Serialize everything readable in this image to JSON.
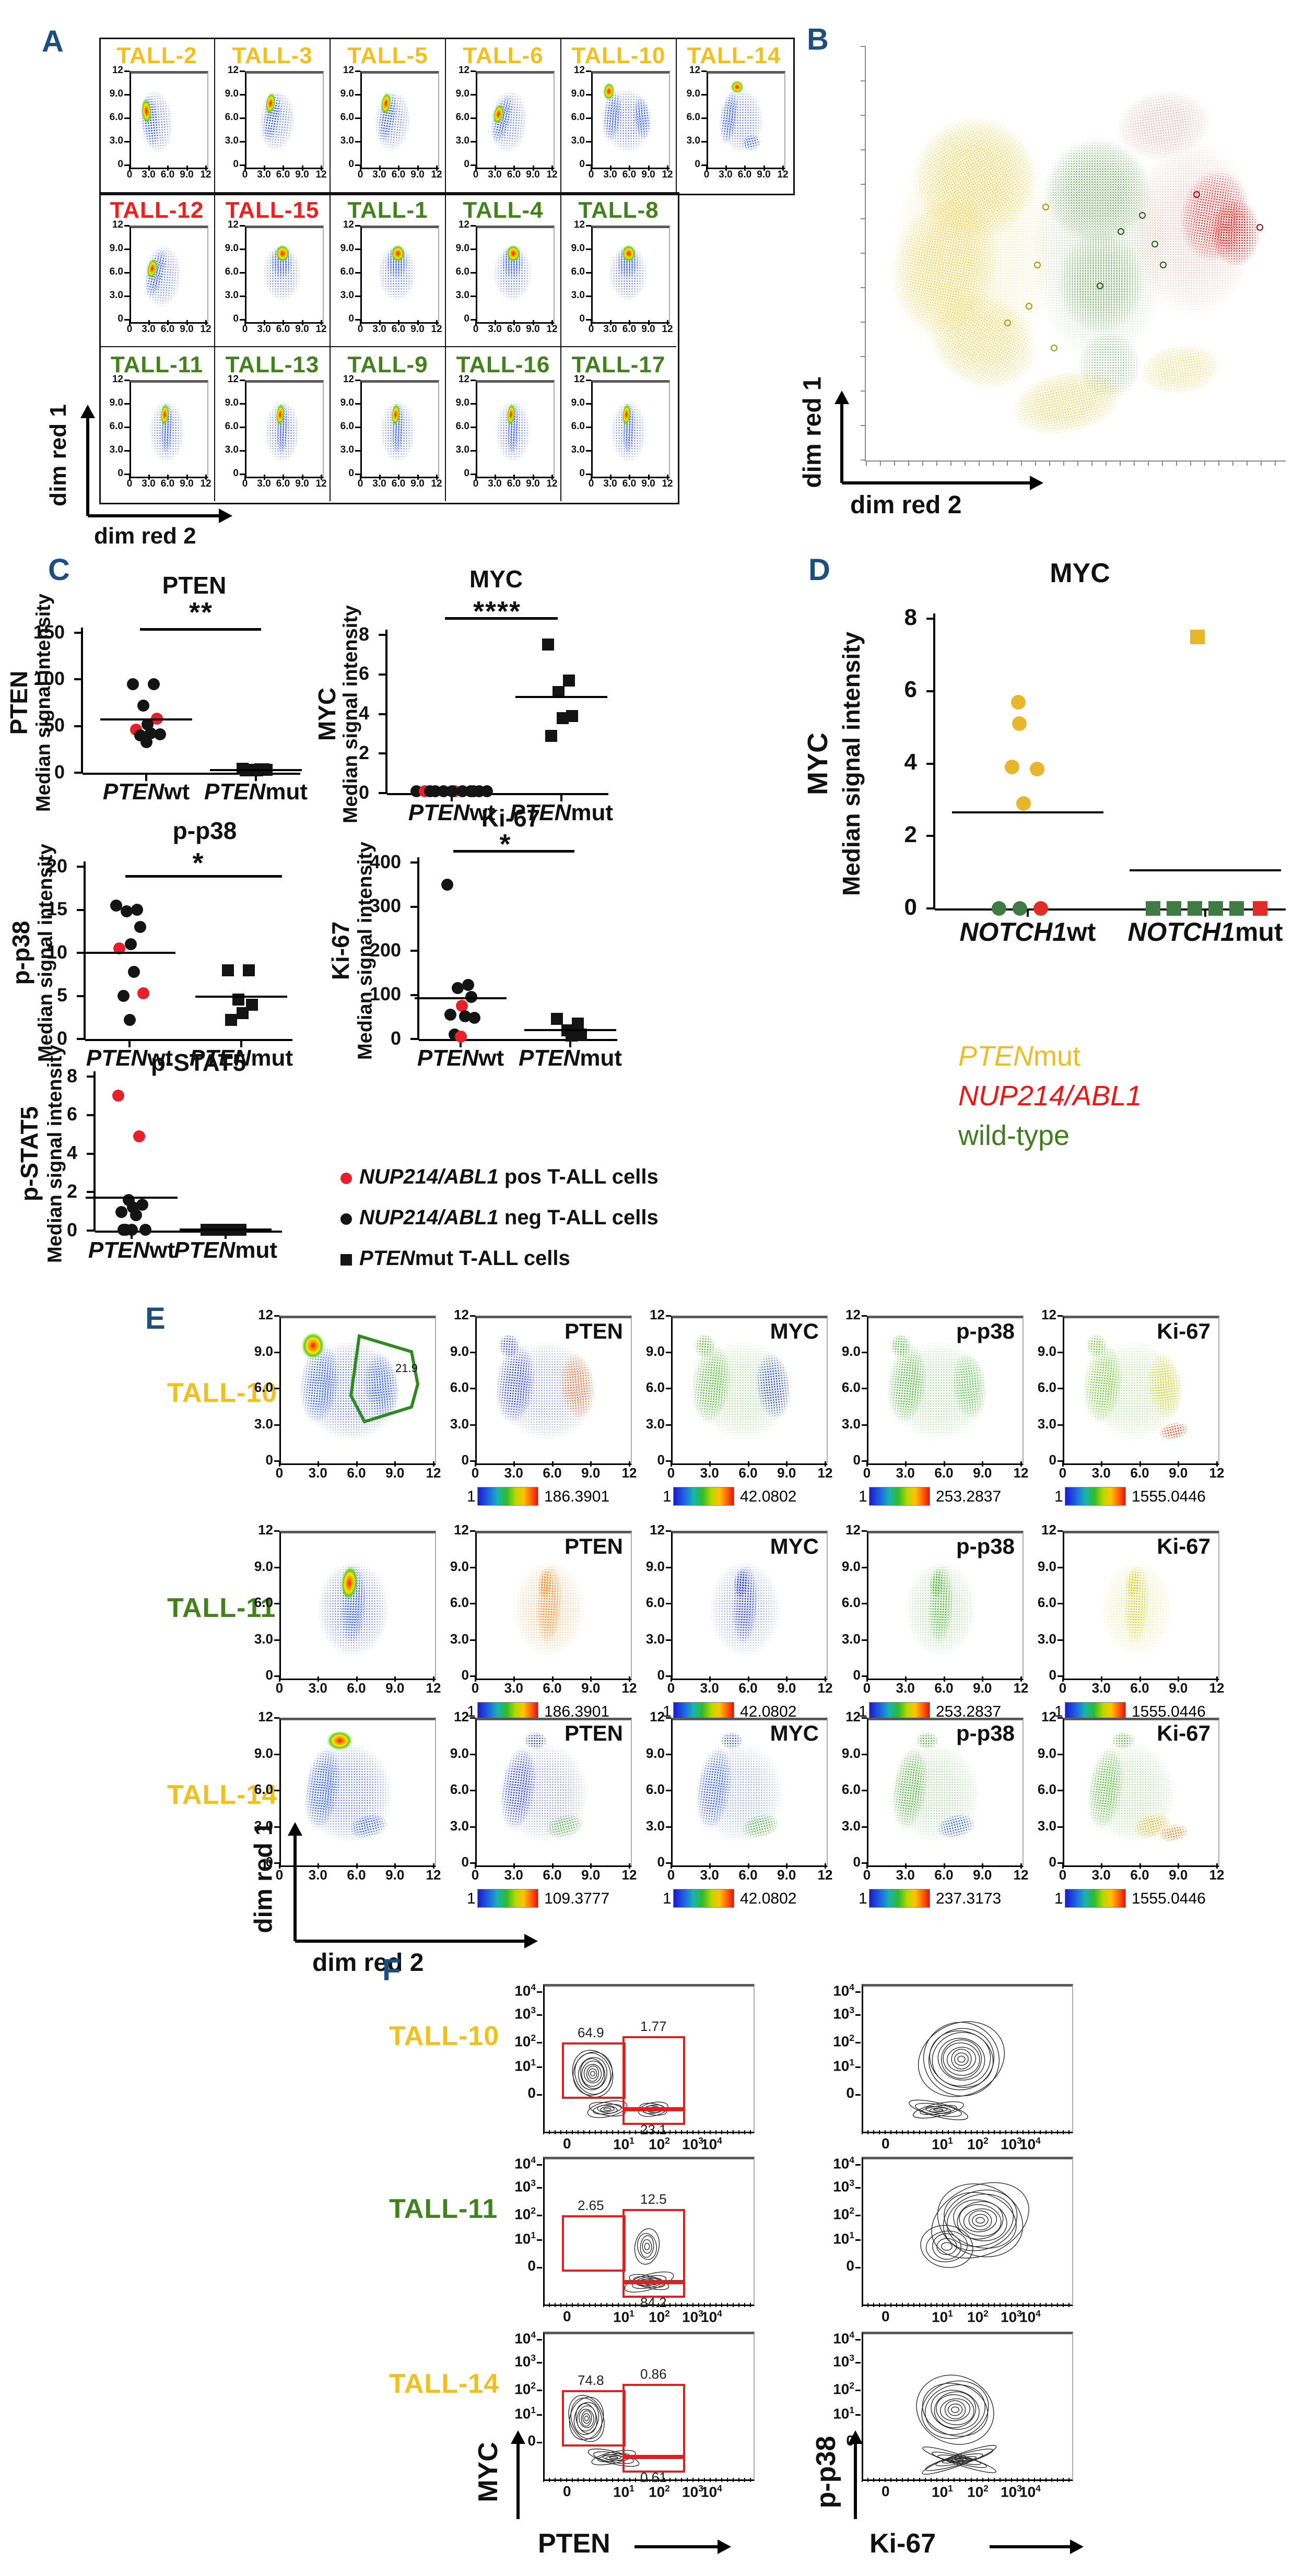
{
  "colors": {
    "panel_letter": "#1c4e7e",
    "tall_yellow": "#f1c01f",
    "tall_red": "#f21d1c",
    "tall_green": "#41821c",
    "point_black": "#141414",
    "point_red": "#e8202a",
    "d_yellow": "#e9b52c",
    "d_green": "#3e7c43",
    "d_red": "#e22d25",
    "gate_red": "#e02020",
    "gate_green": "#2f8a1f"
  },
  "panels": {
    "A": {
      "letter": "A",
      "x_axis": "dim red 2",
      "y_axis": "dim red 1",
      "axis_ticks": [
        "0",
        "3.0",
        "6.0",
        "9.0",
        "12"
      ],
      "rows": [
        {
          "cells": [
            {
              "label": "TALL-2",
              "group": "yellow"
            },
            {
              "label": "TALL-3",
              "group": "yellow"
            },
            {
              "label": "TALL-5",
              "group": "yellow"
            },
            {
              "label": "TALL-6",
              "group": "yellow"
            },
            {
              "label": "TALL-10",
              "group": "yellow"
            },
            {
              "label": "TALL-14",
              "group": "yellow"
            }
          ]
        },
        {
          "cells": [
            {
              "label": "TALL-12",
              "group": "red"
            },
            {
              "label": "TALL-15",
              "group": "red"
            },
            {
              "label": "TALL-1",
              "group": "green"
            },
            {
              "label": "TALL-4",
              "group": "green"
            },
            {
              "label": "TALL-8",
              "group": "green"
            }
          ]
        },
        {
          "cells": [
            {
              "label": "TALL-11",
              "group": "green"
            },
            {
              "label": "TALL-13",
              "group": "green"
            },
            {
              "label": "TALL-9",
              "group": "green"
            },
            {
              "label": "TALL-16",
              "group": "green"
            },
            {
              "label": "TALL-17",
              "group": "green"
            }
          ]
        }
      ]
    },
    "B": {
      "letter": "B",
      "x_axis": "dim red 2",
      "y_axis": "dim red 1"
    },
    "C": {
      "letter": "C",
      "legend": [
        {
          "marker": "circle",
          "color": "#e8202a",
          "italic": "NUP214/ABL1",
          "rest": " pos T-ALL cells"
        },
        {
          "marker": "circle",
          "color": "#141414",
          "italic": "NUP214/ABL1",
          "rest": " neg T-ALL cells"
        },
        {
          "marker": "square",
          "color": "#141414",
          "italic": "PTEN",
          "rest": "mut T-ALL cells"
        }
      ]
    },
    "D": {
      "letter": "D",
      "color_legend": [
        {
          "italic": "PTEN",
          "rest": "mut",
          "color": "#edbd23"
        },
        {
          "italic": "NUP214/ABL1",
          "rest": "",
          "color": "#f31313"
        },
        {
          "italic": "",
          "rest": "wild-type",
          "color": "#3f7d1f"
        }
      ]
    },
    "E": {
      "letter": "E",
      "x_axis": "dim red 2",
      "y_axis": "dim red 1"
    },
    "F": {
      "letter": "F"
    }
  },
  "chart_data": [
    {
      "id": "C_PTEN",
      "panel": "C",
      "type": "scatter",
      "title": "PTEN",
      "significance": "**",
      "ylabel_marker": "PTEN",
      "ylabel": "Median signal intensity",
      "ylim": [
        0,
        150
      ],
      "yticks": [
        0,
        50,
        100,
        150
      ],
      "groups": [
        {
          "gene": "PTEN",
          "suffix": "wt",
          "marker": "circle",
          "values": [
            95,
            95,
            72,
            58,
            52,
            46,
            42,
            41,
            40,
            33
          ],
          "red_indices": [
            3,
            5
          ],
          "median": 57
        },
        {
          "gene": "PTEN",
          "suffix": "mut",
          "marker": "square",
          "values": [
            4,
            3.5,
            3,
            3,
            2.5,
            2.5,
            3.5
          ],
          "red_indices": [],
          "median": 3
        }
      ]
    },
    {
      "id": "C_MYC",
      "panel": "C",
      "type": "scatter",
      "title": "MYC",
      "significance": "****",
      "ylabel_marker": "MYC",
      "ylabel": "Median signal intensity",
      "ylim": [
        0,
        8
      ],
      "yticks": [
        0,
        2,
        4,
        6,
        8
      ],
      "groups": [
        {
          "gene": "PTEN",
          "suffix": "wt",
          "marker": "circle",
          "values": [
            0.08,
            0.08,
            0.08,
            0.08,
            0.08,
            0.08,
            0.08,
            0.08,
            0.08,
            0.08,
            0.08,
            0.08
          ],
          "red_indices": [
            4,
            5
          ],
          "median": null
        },
        {
          "gene": "PTEN",
          "suffix": "mut",
          "marker": "square",
          "values": [
            7.5,
            5.7,
            5.1,
            3.9,
            3.8,
            2.9
          ],
          "red_indices": [],
          "median": 4.85
        }
      ]
    },
    {
      "id": "C_pp38",
      "panel": "C",
      "type": "scatter",
      "title": "p-p38",
      "significance": "*",
      "ylabel_marker": "p-p38",
      "ylabel": "Median signal intensity",
      "ylim": [
        0,
        20
      ],
      "yticks": [
        0,
        5,
        10,
        15,
        20
      ],
      "groups": [
        {
          "gene": "PTEN",
          "suffix": "wt",
          "marker": "circle",
          "values": [
            15.5,
            15,
            14.8,
            13,
            11,
            10.5,
            7.8,
            5.3,
            5,
            2.2
          ],
          "red_indices": [
            5,
            7
          ],
          "median": 10
        },
        {
          "gene": "PTEN",
          "suffix": "mut",
          "marker": "square",
          "values": [
            8,
            8,
            4.6,
            4,
            3,
            2.2
          ],
          "red_indices": [],
          "median": 4.9
        }
      ]
    },
    {
      "id": "C_Ki67",
      "panel": "C",
      "type": "scatter",
      "title": "Ki-67",
      "significance": "*",
      "ylabel_marker": "Ki-67",
      "ylabel": "Median signal intensity",
      "ylim": [
        0,
        400
      ],
      "yticks": [
        0,
        100,
        200,
        300,
        400
      ],
      "groups": [
        {
          "gene": "PTEN",
          "suffix": "wt",
          "marker": "circle",
          "values": [
            350,
            122,
            115,
            95,
            75,
            55,
            52,
            48,
            10,
            5
          ],
          "red_indices": [
            4,
            9
          ],
          "median": 92
        },
        {
          "gene": "PTEN",
          "suffix": "mut",
          "marker": "square",
          "values": [
            45,
            35,
            20,
            10,
            8
          ],
          "red_indices": [],
          "median": 20
        }
      ]
    },
    {
      "id": "C_pSTAT5",
      "panel": "C",
      "type": "scatter",
      "title": "p-STAT5",
      "significance": null,
      "ylabel_marker": "p-STAT5",
      "ylabel": "Median signal intensity",
      "ylim": [
        0,
        8
      ],
      "yticks": [
        0,
        2,
        4,
        6,
        8
      ],
      "groups": [
        {
          "gene": "PTEN",
          "suffix": "wt",
          "marker": "circle",
          "values": [
            7,
            4.9,
            1.6,
            1.35,
            1.2,
            0.95,
            0.8,
            0.05,
            0.05,
            0.05,
            0.05
          ],
          "red_indices": [
            0,
            1
          ],
          "median": 1.7
        },
        {
          "gene": "PTEN",
          "suffix": "mut",
          "marker": "square",
          "values": [
            0.05,
            0.05,
            0.05,
            0.05,
            0.05,
            0.05,
            0.05
          ],
          "red_indices": [],
          "median": 0.05
        }
      ]
    },
    {
      "id": "D_MYC",
      "panel": "D",
      "type": "scatter",
      "title": "MYC",
      "ylabel_marker": "MYC",
      "ylabel": "Median signal intensity",
      "ylim": [
        0,
        8
      ],
      "yticks": [
        0,
        2,
        4,
        6,
        8
      ],
      "groups": [
        {
          "gene": "NOTCH1",
          "suffix": "wt",
          "marker": "circle",
          "median": 2.65,
          "points": [
            {
              "v": 5.7,
              "c": "yellow"
            },
            {
              "v": 5.1,
              "c": "yellow"
            },
            {
              "v": 3.9,
              "c": "yellow"
            },
            {
              "v": 3.85,
              "c": "yellow"
            },
            {
              "v": 2.9,
              "c": "yellow"
            },
            {
              "v": 0,
              "c": "green"
            },
            {
              "v": 0,
              "c": "green"
            },
            {
              "v": 0,
              "c": "red"
            }
          ]
        },
        {
          "gene": "NOTCH1",
          "suffix": "mut",
          "marker": "square",
          "median": 1.05,
          "points": [
            {
              "v": 7.5,
              "c": "yellow"
            },
            {
              "v": 0,
              "c": "green"
            },
            {
              "v": 0,
              "c": "green"
            },
            {
              "v": 0,
              "c": "green"
            },
            {
              "v": 0,
              "c": "green"
            },
            {
              "v": 0,
              "c": "green"
            },
            {
              "v": 0,
              "c": "red"
            }
          ]
        }
      ]
    },
    {
      "id": "E_flow",
      "panel": "E",
      "type": "flow-density",
      "columns": [
        "PTEN",
        "MYC",
        "p-p38",
        "Ki-67"
      ],
      "axis_ticks": [
        "0",
        "3.0",
        "6.0",
        "9.0",
        "12"
      ],
      "x_axis": "dim red 2",
      "y_axis": "dim red 1",
      "scale_min": "1",
      "rows": [
        {
          "label": "TALL-10",
          "group": "yellow",
          "gate_percent": "21.9",
          "scale_max": [
            "186.3901",
            "42.0802",
            "253.2837",
            "1555.0446"
          ]
        },
        {
          "label": "TALL-11",
          "group": "green",
          "gate_percent": null,
          "scale_max": [
            "186.3901",
            "42.0802",
            "253.2837",
            "1555.0446"
          ]
        },
        {
          "label": "TALL-14",
          "group": "yellow",
          "gate_percent": null,
          "scale_max": [
            "109.3777",
            "42.0802",
            "237.3173",
            "1555.0446"
          ]
        }
      ]
    },
    {
      "id": "F_contour",
      "panel": "F",
      "type": "contour",
      "log_ticks": [
        "0",
        "1",
        "2",
        "3",
        "4"
      ],
      "xlabel_left": "PTEN",
      "ylabel_left": "MYC",
      "xlabel_right": "Ki-67",
      "ylabel_right": "p-p38",
      "rows": [
        {
          "label": "TALL-10",
          "group": "yellow",
          "gate_values": [
            "64.9",
            "1.77",
            "23.1"
          ]
        },
        {
          "label": "TALL-11",
          "group": "green",
          "gate_values": [
            "2.65",
            "12.5",
            "84.2"
          ]
        },
        {
          "label": "TALL-14",
          "group": "yellow",
          "gate_values": [
            "74.8",
            "0.86",
            "0.61"
          ]
        }
      ]
    }
  ]
}
